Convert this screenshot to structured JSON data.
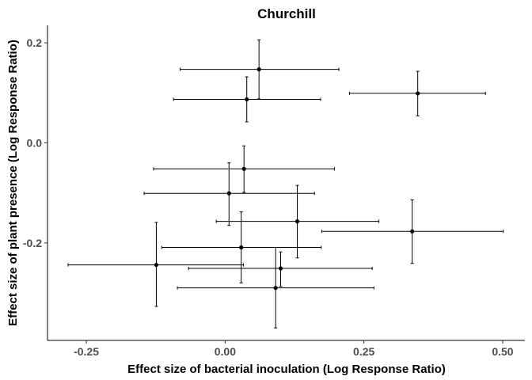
{
  "chart_data": {
    "type": "scatter",
    "title": "Churchill",
    "xlabel": "Effect size of bacterial inoculation (Log Response Ratio)",
    "ylabel": "Effect size of plant presence (Log Response Ratio)",
    "xlim": [
      -0.32,
      0.54
    ],
    "ylim": [
      -0.395,
      0.235
    ],
    "xticks": [
      -0.25,
      0.0,
      0.25,
      0.5
    ],
    "xtick_labels": [
      "-0.25",
      "0.00",
      "0.25",
      "0.50"
    ],
    "yticks": [
      -0.2,
      0.0,
      0.2
    ],
    "ytick_labels": [
      "-0.2",
      "0.0",
      "0.2"
    ],
    "grid": false,
    "points": [
      {
        "x": 0.061,
        "y": 0.147,
        "xmin": -0.081,
        "xmax": 0.205,
        "ymin": 0.088,
        "ymax": 0.206
      },
      {
        "x": 0.039,
        "y": 0.087,
        "xmin": -0.093,
        "xmax": 0.172,
        "ymin": 0.042,
        "ymax": 0.132
      },
      {
        "x": 0.347,
        "y": 0.099,
        "xmin": 0.224,
        "xmax": 0.469,
        "ymin": 0.054,
        "ymax": 0.143
      },
      {
        "x": 0.034,
        "y": -0.052,
        "xmin": -0.129,
        "xmax": 0.197,
        "ymin": -0.099,
        "ymax": -0.006
      },
      {
        "x": 0.007,
        "y": -0.101,
        "xmin": -0.146,
        "xmax": 0.161,
        "ymin": -0.165,
        "ymax": -0.04
      },
      {
        "x": 0.13,
        "y": -0.157,
        "xmin": -0.016,
        "xmax": 0.277,
        "ymin": -0.23,
        "ymax": -0.085
      },
      {
        "x": 0.337,
        "y": -0.177,
        "xmin": 0.174,
        "xmax": 0.501,
        "ymin": -0.241,
        "ymax": -0.114
      },
      {
        "x": 0.029,
        "y": -0.209,
        "xmin": -0.114,
        "xmax": 0.173,
        "ymin": -0.28,
        "ymax": -0.138
      },
      {
        "x": -0.124,
        "y": -0.244,
        "xmin": -0.283,
        "xmax": 0.033,
        "ymin": -0.327,
        "ymax": -0.159
      },
      {
        "x": 0.1,
        "y": -0.251,
        "xmin": -0.066,
        "xmax": 0.265,
        "ymin": -0.287,
        "ymax": -0.218
      },
      {
        "x": 0.091,
        "y": -0.29,
        "xmin": -0.086,
        "xmax": 0.268,
        "ymin": -0.37,
        "ymax": -0.209
      }
    ]
  }
}
